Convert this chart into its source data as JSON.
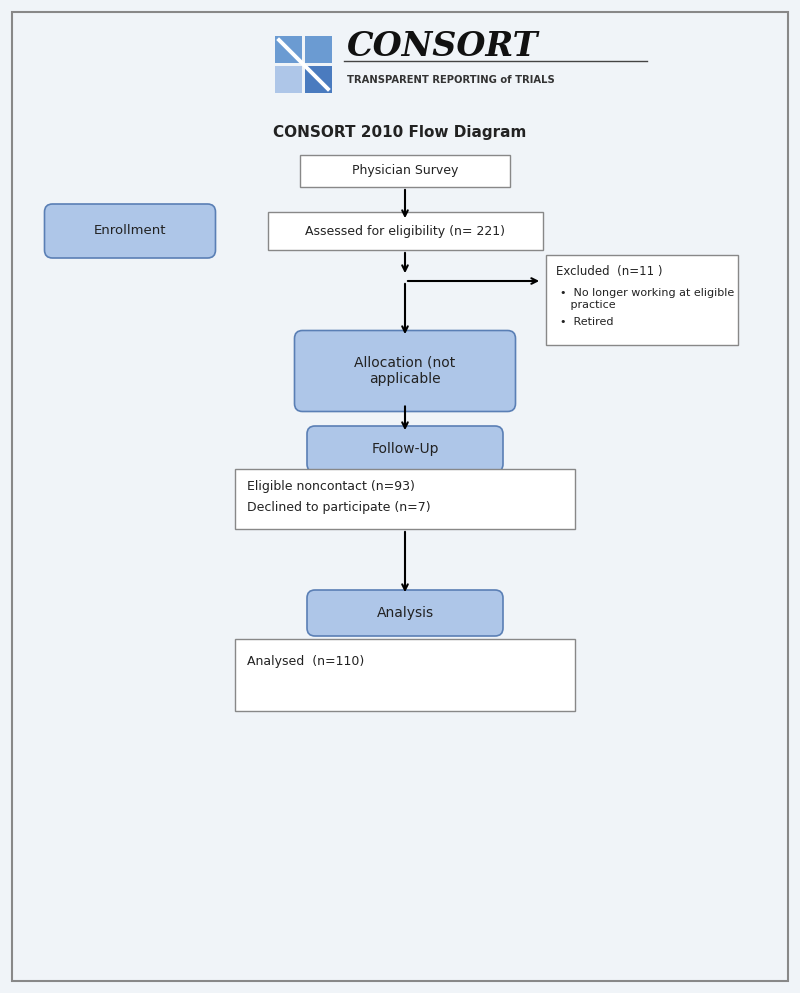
{
  "title": "CONSORT 2010 Flow Diagram",
  "title_fontsize": 11,
  "bg_color": "#f0f4f8",
  "box_bg_blue": "#aec6e8",
  "box_bg_white": "#ffffff",
  "box_border_blue": "#5a7fb5",
  "box_border_white": "#888888",
  "text_color": "#222222",
  "logo_color_top": "#6b9bd2",
  "logo_color_bottom_left": "#aec6e8",
  "logo_color_bottom_right": "#4a7bbf",
  "consort_text": "CONSORT",
  "consort_subtitle": "TRANSPARENT REPORTING of TRIALS",
  "enrollment_label": "Enrollment",
  "physician_survey_text": "Physician Survey",
  "eligibility_text": "Assessed for eligibility (n= 221)",
  "excluded_title": "Excluded  (n=11 )",
  "excluded_bullet1": "•  No longer working at eligible\n   practice",
  "excluded_bullet2": "•  Retired",
  "allocation_text": "Allocation (not\napplicable",
  "followup_text": "Follow-Up",
  "followup_line1": "Eligible noncontact (n=93)",
  "followup_line2": "Declined to participate (n=7)",
  "analysis_text": "Analysis",
  "analysed_text": "Analysed  (n=110)",
  "font_family": "DejaVu Sans"
}
